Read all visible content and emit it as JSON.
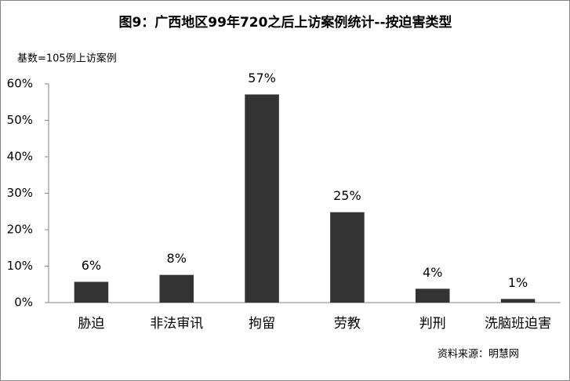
{
  "chart_data": {
    "type": "bar",
    "title": "图9：广西地区99年720之后上访案例统计--按迫害类型",
    "subtitle": "基数=105例上访案例",
    "source": "资料来源：明慧网",
    "categories": [
      "胁迫",
      "非法审讯",
      "拘留",
      "劳教",
      "判刑",
      "洗脑班迫害"
    ],
    "values": [
      5.7,
      7.6,
      57.1,
      24.8,
      3.8,
      1.0
    ],
    "value_labels": [
      "6%",
      "8%",
      "57%",
      "25%",
      "4%",
      "1%"
    ],
    "color": "#333333",
    "ylim": [
      0,
      60
    ],
    "yticks": [
      {
        "value": 0,
        "label": "0%"
      },
      {
        "value": 10,
        "label": "10%"
      },
      {
        "value": 20,
        "label": "20%"
      },
      {
        "value": 30,
        "label": "30%"
      },
      {
        "value": 40,
        "label": "40%"
      },
      {
        "value": 50,
        "label": "50%"
      },
      {
        "value": 60,
        "label": "60%"
      }
    ]
  }
}
